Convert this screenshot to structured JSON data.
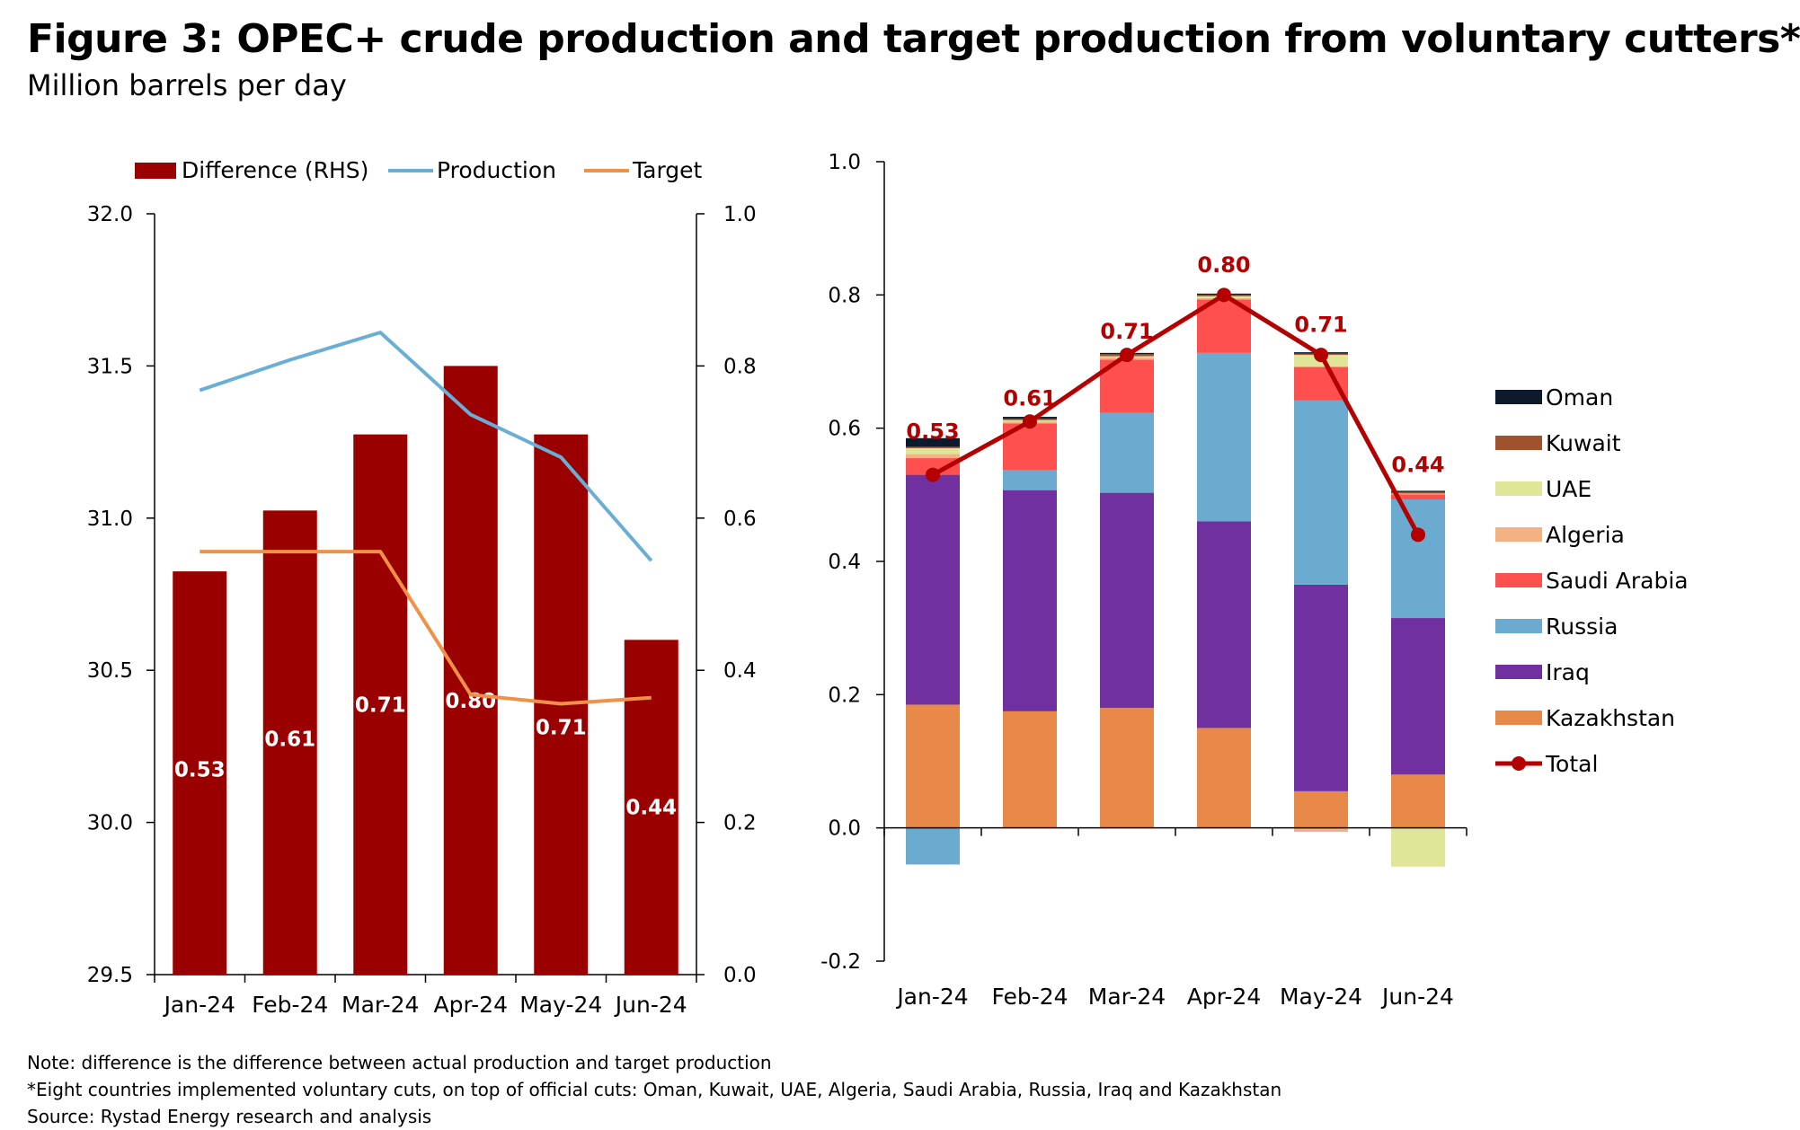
{
  "header": {
    "title": "Figure 3: OPEC+ crude production and target production from voluntary cutters*",
    "subtitle": "Million barrels per day"
  },
  "notes": [
    "Note: difference is the difference between actual production and target production",
    "*Eight countries implemented voluntary cuts, on top of official cuts: Oman, Kuwait, UAE, Algeria, Saudi Arabia, Russia, Iraq and Kazakhstan",
    "Source: Rystad Energy research and analysis"
  ],
  "chart_data": [
    {
      "type": "bar+line",
      "categories": [
        "Jan-24",
        "Feb-24",
        "Mar-24",
        "Apr-24",
        "May-24",
        "Jun-24"
      ],
      "series": [
        {
          "name": "Difference (RHS)",
          "type": "bar",
          "axis": "right",
          "color": "#9b0000",
          "values": [
            0.53,
            0.61,
            0.71,
            0.8,
            0.71,
            0.44
          ],
          "labels": [
            "0.53",
            "0.61",
            "0.71",
            "0.80",
            "0.71",
            "0.44"
          ]
        },
        {
          "name": "Production",
          "type": "line",
          "axis": "left",
          "color": "#6aaed6",
          "values": [
            31.42,
            31.52,
            31.61,
            31.34,
            31.2,
            30.86
          ]
        },
        {
          "name": "Target",
          "type": "line",
          "axis": "left",
          "color": "#f0914a",
          "values": [
            30.89,
            30.89,
            30.89,
            30.42,
            30.39,
            30.41
          ]
        }
      ],
      "ylim_left": [
        29.5,
        32.0
      ],
      "yticks_left": [
        "29.5",
        "30.0",
        "30.5",
        "31.0",
        "31.5",
        "32.0"
      ],
      "ylim_right": [
        0.0,
        1.0
      ],
      "yticks_right": [
        "0.0",
        "0.2",
        "0.4",
        "0.6",
        "0.8",
        "1.0"
      ],
      "legend": "top"
    },
    {
      "type": "stacked-bar+line",
      "categories": [
        "Jan-24",
        "Feb-24",
        "Mar-24",
        "Apr-24",
        "May-24",
        "Jun-24"
      ],
      "series": [
        {
          "name": "Kazakhstan",
          "color": "#e8894a",
          "values": [
            0.185,
            0.175,
            0.18,
            0.15,
            0.055,
            0.08
          ]
        },
        {
          "name": "Iraq",
          "color": "#7030a0",
          "values": [
            0.345,
            0.332,
            0.323,
            0.31,
            0.31,
            0.235
          ]
        },
        {
          "name": "Russia",
          "color": "#6aabcf",
          "values": [
            -0.055,
            0.03,
            0.12,
            0.253,
            0.277,
            0.178
          ]
        },
        {
          "name": "Saudi Arabia",
          "color": "#ff5050",
          "values": [
            0.025,
            0.07,
            0.08,
            0.08,
            0.05,
            0.008
          ]
        },
        {
          "name": "Algeria",
          "color": "#f4b183",
          "values": [
            0.006,
            0.003,
            0.003,
            0.002,
            -0.006,
            0.001
          ]
        },
        {
          "name": "UAE",
          "color": "#dfe697",
          "values": [
            0.009,
            0.002,
            0.002,
            0.003,
            0.018,
            -0.058
          ]
        },
        {
          "name": "Kuwait",
          "color": "#a0522d",
          "values": [
            0.002,
            0.002,
            0.003,
            0.002,
            0.002,
            0.003
          ]
        },
        {
          "name": "Oman",
          "color": "#0d1a2b",
          "values": [
            0.013,
            0.003,
            0.002,
            0.002,
            0.002,
            0.001
          ]
        }
      ],
      "total": {
        "name": "Total",
        "color": "#b40000",
        "values": [
          0.53,
          0.61,
          0.71,
          0.8,
          0.71,
          0.44
        ],
        "labels": [
          "0.53",
          "0.61",
          "0.71",
          "0.80",
          "0.71",
          "0.44"
        ]
      },
      "ylim": [
        -0.2,
        1.0
      ],
      "yticks": [
        "-0.2",
        "0.0",
        "0.2",
        "0.4",
        "0.6",
        "0.8",
        "1.0"
      ],
      "legend_order": [
        "Oman",
        "Kuwait",
        "UAE",
        "Algeria",
        "Saudi Arabia",
        "Russia",
        "Iraq",
        "Kazakhstan",
        "Total"
      ],
      "legend": "right"
    }
  ]
}
